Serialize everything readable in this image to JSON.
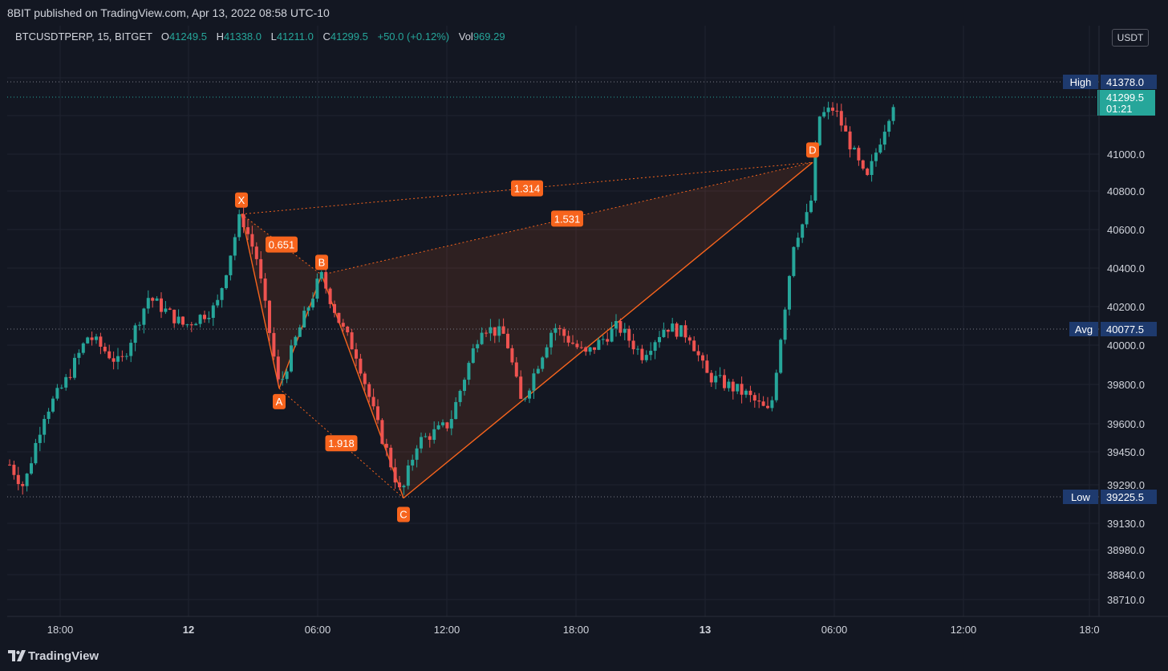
{
  "header": {
    "publish_line": "8BIT published on TradingView.com, Apr 13, 2022 08:58 UTC-10"
  },
  "legend": {
    "symbol": "BTCUSDTPERP, 15, BITGET",
    "open_label": "O",
    "open": "41249.5",
    "high_label": "H",
    "high": "41338.0",
    "low_label": "L",
    "low": "41211.0",
    "close_label": "C",
    "close": "41299.5",
    "change": "+50.0 (+0.12%)",
    "vol_label": "Vol",
    "vol": "969.29"
  },
  "unit": "USDT",
  "footer": {
    "brand": "TradingView"
  },
  "colors": {
    "up": "#26a69a",
    "down": "#ef5350",
    "pattern": "#f7641d",
    "label_bg": "#1e3a6e",
    "bg": "#131722"
  },
  "chart_data": {
    "type": "candlestick",
    "y_ticks": [
      "41000.0",
      "40800.0",
      "40600.0",
      "40400.0",
      "40200.0",
      "40000.0",
      "39800.0",
      "39600.0",
      "39450.0",
      "39290.0",
      "39130.0",
      "38980.0",
      "38840.0",
      "38710.0"
    ],
    "x_ticks": [
      {
        "label": "18:00",
        "bold": false
      },
      {
        "label": "12",
        "bold": true
      },
      {
        "label": "06:00",
        "bold": false
      },
      {
        "label": "12:00",
        "bold": false
      },
      {
        "label": "18:00",
        "bold": false
      },
      {
        "label": "13",
        "bold": true
      },
      {
        "label": "06:00",
        "bold": false
      },
      {
        "label": "12:00",
        "bold": false
      },
      {
        "label": "18:0",
        "bold": false
      }
    ],
    "price_lines": [
      {
        "name": "High",
        "value": "41378.0"
      },
      {
        "name": "Avg",
        "value": "40077.5"
      },
      {
        "name": "Low",
        "value": "39225.5"
      }
    ],
    "last_price": {
      "value": "41299.5",
      "countdown": "01:21"
    },
    "harmonic_pattern": {
      "points": [
        {
          "label": "X",
          "price": 40680
        },
        {
          "label": "A",
          "price": 39780
        },
        {
          "label": "B",
          "price": 40365
        },
        {
          "label": "C",
          "price": 39235
        },
        {
          "label": "D",
          "price": 40955
        }
      ],
      "ratios": [
        {
          "label": "0.651",
          "between": "XB"
        },
        {
          "label": "1.918",
          "between": "AC"
        },
        {
          "label": "1.531",
          "between": "BD"
        },
        {
          "label": "1.314",
          "between": "XD"
        }
      ]
    }
  }
}
